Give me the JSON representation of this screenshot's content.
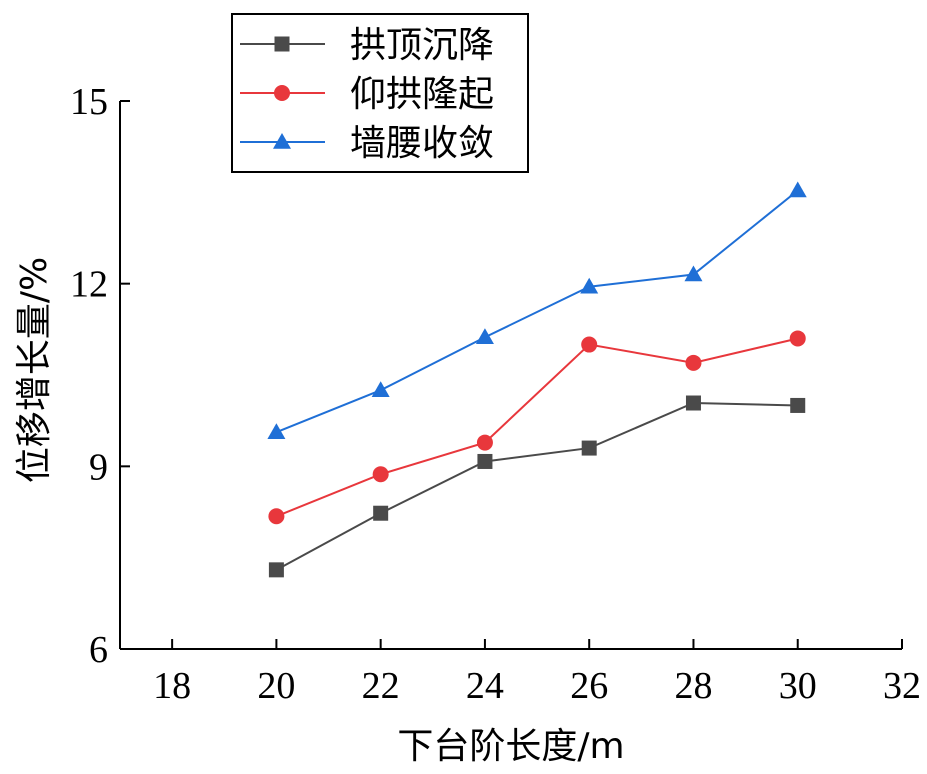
{
  "chart_data": {
    "type": "line",
    "xlabel": "下台阶长度/m",
    "ylabel": "位移增长量/%",
    "xlim": [
      17,
      32
    ],
    "ylim": [
      6,
      15
    ],
    "xticks": [
      18,
      20,
      22,
      24,
      26,
      28,
      30,
      32
    ],
    "yticks": [
      6,
      9,
      12,
      15
    ],
    "x": [
      20,
      22,
      24,
      26,
      28,
      30
    ],
    "legend_position": "top-left",
    "grid": false,
    "series": [
      {
        "name": "拱顶沉降",
        "values": [
          7.3,
          8.23,
          9.08,
          9.3,
          10.04,
          10.0
        ],
        "color": "#4a4a4a",
        "marker": "square"
      },
      {
        "name": "仰拱隆起",
        "values": [
          8.18,
          8.87,
          9.39,
          11.0,
          10.7,
          11.1
        ],
        "color": "#e8373c",
        "marker": "circle"
      },
      {
        "name": "墙腰收敛",
        "values": [
          9.56,
          10.25,
          11.12,
          11.95,
          12.15,
          13.53
        ],
        "color": "#1f6fd6",
        "marker": "triangle"
      }
    ]
  }
}
